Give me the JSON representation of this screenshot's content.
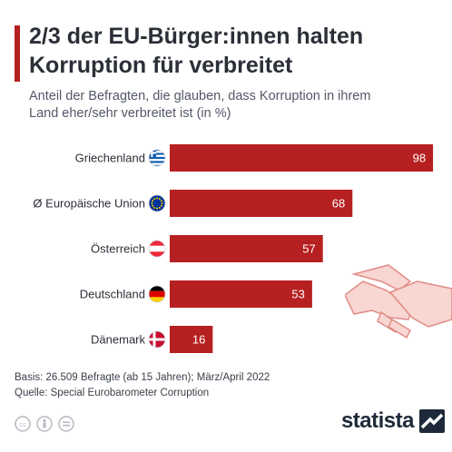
{
  "header": {
    "title_line1": "2/3 der EU-Bürger:innen halten",
    "title_line2": "Korruption für verbreitet",
    "subtitle_line1": "Anteil der Befragten, die glauben, dass Korruption in ihrem",
    "subtitle_line2": "Land eher/sehr verbreitet ist (in %)"
  },
  "chart_data": {
    "type": "bar",
    "orientation": "horizontal",
    "categories": [
      "Griechenland",
      "Ø Europäische Union",
      "Österreich",
      "Deutschland",
      "Dänemark"
    ],
    "values": [
      98,
      68,
      57,
      53,
      16
    ],
    "xlim": [
      0,
      100
    ],
    "grid": false,
    "bar_color": "#b62020",
    "flags": [
      "greece-flag-icon",
      "eu-flag-icon",
      "austria-flag-icon",
      "germany-flag-icon",
      "denmark-flag-icon"
    ]
  },
  "footer": {
    "basis": "Basis: 26.509 Befragte (ab 15 Jahren); März/April 2022",
    "source": "Quelle: Special Eurobarometer Corruption",
    "brand": "statista"
  },
  "colors": {
    "accent": "#b62020",
    "bar": "#b62020",
    "handshake": "#f5c8c3"
  }
}
